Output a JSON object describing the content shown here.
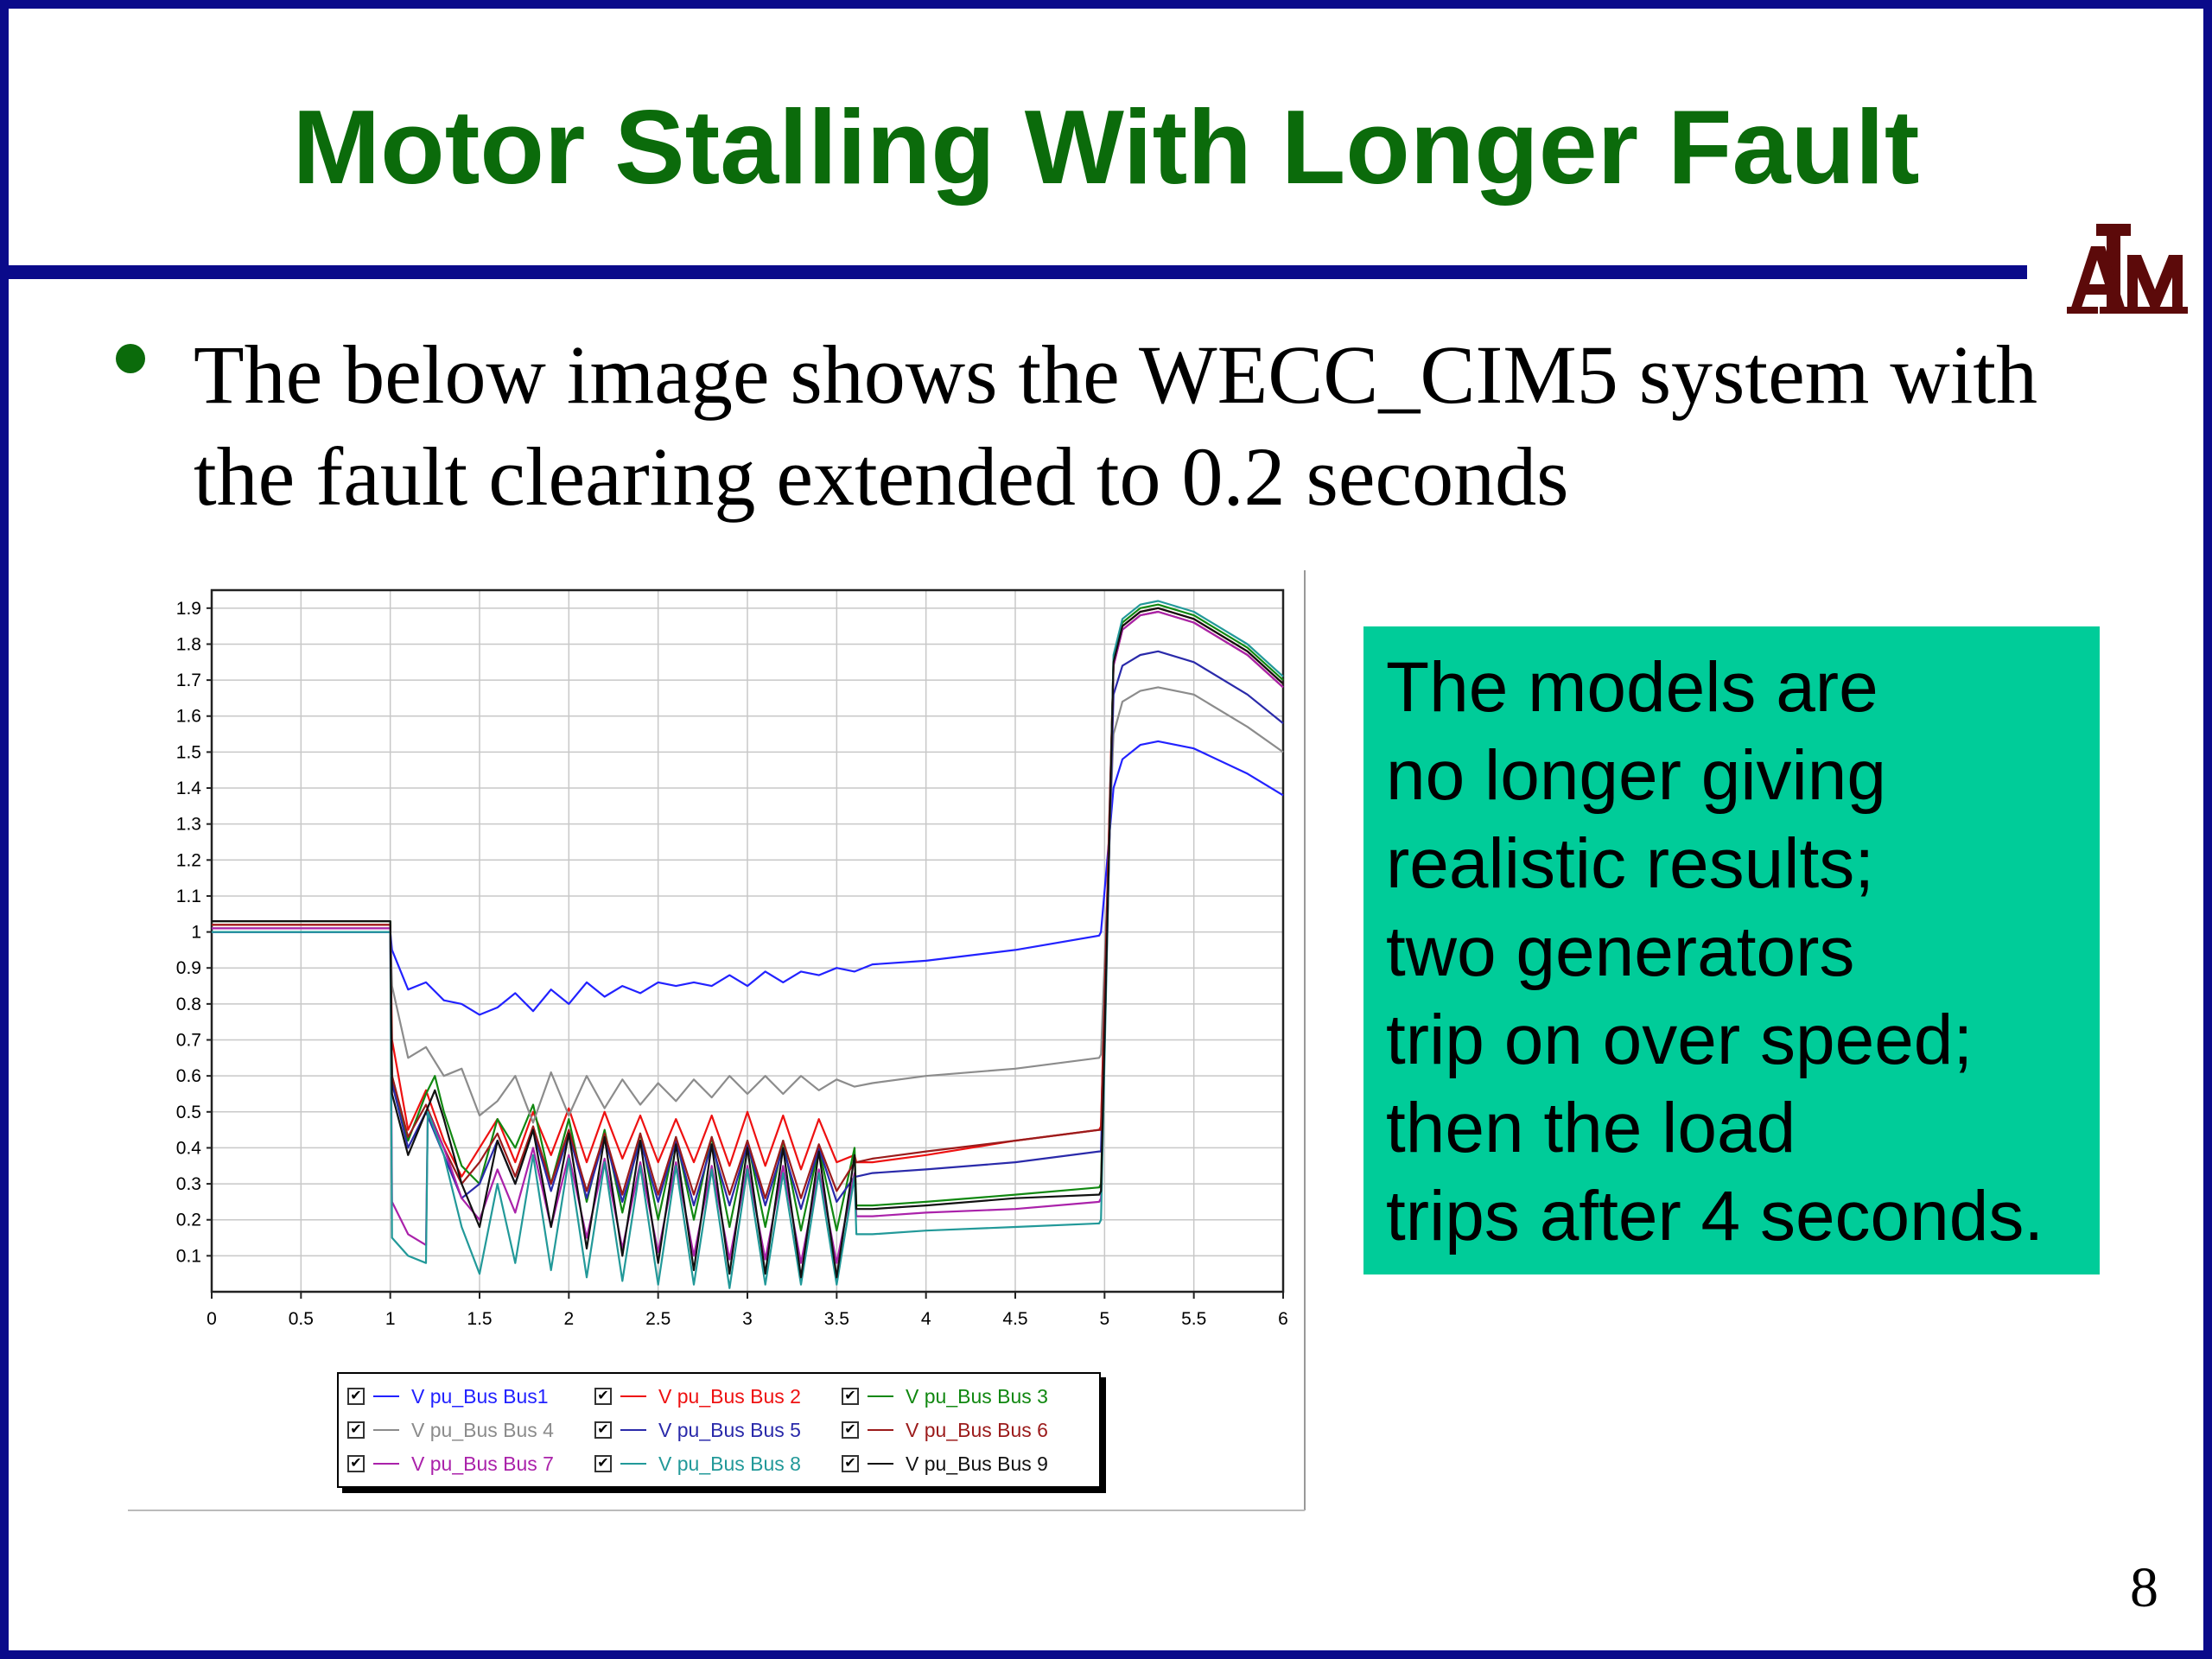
{
  "slide": {
    "title": "Motor Stalling With Longer Fault",
    "bullet": "The below image shows the WECC_CIM5 system with the fault clearing extended to 0.2 seconds",
    "callout_lines": [
      "The models are",
      "no longer giving",
      "realistic results;",
      "two generators",
      "trip on over speed;",
      "then the load",
      "trips after 4 seconds."
    ],
    "page_number": "8",
    "logo_text": "ATM",
    "colors": {
      "title": "#0b6b0b",
      "frame": "#0a0a8a",
      "callout_bg": "#00cc99",
      "logo": "#5c0a0a"
    }
  },
  "chart_data": {
    "type": "line",
    "title": "",
    "xlabel": "",
    "ylabel": "",
    "xlim": [
      0,
      6
    ],
    "ylim": [
      0,
      1.95
    ],
    "xticks": [
      "0",
      "0.5",
      "1",
      "1.5",
      "2",
      "2.5",
      "3",
      "3.5",
      "4",
      "4.5",
      "5",
      "5.5",
      "6"
    ],
    "yticks": [
      "0.1",
      "0.2",
      "0.3",
      "0.4",
      "0.5",
      "0.6",
      "0.7",
      "0.8",
      "0.9",
      "1",
      "1.1",
      "1.2",
      "1.3",
      "1.4",
      "1.5",
      "1.6",
      "1.7",
      "1.8",
      "1.9"
    ],
    "grid": true,
    "legend_position": "bottom",
    "legend_checked": true,
    "series": [
      {
        "name": "V pu_Bus Bus1",
        "color": "#2222ff",
        "x": [
          0,
          1,
          1.01,
          1.1,
          1.2,
          1.3,
          1.4,
          1.5,
          1.6,
          1.7,
          1.8,
          1.9,
          2.0,
          2.1,
          2.2,
          2.3,
          2.4,
          2.5,
          2.6,
          2.7,
          2.8,
          2.9,
          3.0,
          3.1,
          3.2,
          3.3,
          3.4,
          3.5,
          3.6,
          3.7,
          4.0,
          4.5,
          4.97,
          4.98,
          5.05,
          5.1,
          5.2,
          5.3,
          5.5,
          5.8,
          6.0
        ],
        "y": [
          1.0,
          1.0,
          0.95,
          0.84,
          0.86,
          0.81,
          0.8,
          0.77,
          0.79,
          0.83,
          0.78,
          0.84,
          0.8,
          0.86,
          0.82,
          0.85,
          0.83,
          0.86,
          0.85,
          0.86,
          0.85,
          0.88,
          0.85,
          0.89,
          0.86,
          0.89,
          0.88,
          0.9,
          0.89,
          0.91,
          0.92,
          0.95,
          0.99,
          1.0,
          1.4,
          1.48,
          1.52,
          1.53,
          1.51,
          1.44,
          1.38
        ]
      },
      {
        "name": "V pu_Bus Bus 2",
        "color": "#ee1111",
        "x": [
          0,
          1,
          1.01,
          1.1,
          1.2,
          1.3,
          1.4,
          1.5,
          1.6,
          1.7,
          1.8,
          1.9,
          2.0,
          2.1,
          2.2,
          2.3,
          2.4,
          2.5,
          2.6,
          2.7,
          2.8,
          2.9,
          3.0,
          3.1,
          3.2,
          3.3,
          3.4,
          3.5,
          3.6,
          3.61,
          3.7,
          4.0,
          4.5,
          4.97,
          4.98,
          5.05,
          5.1,
          5.2,
          5.3,
          5.5,
          5.8,
          6.0
        ],
        "y": [
          1.02,
          1.02,
          0.7,
          0.45,
          0.56,
          0.42,
          0.32,
          0.4,
          0.48,
          0.36,
          0.5,
          0.38,
          0.51,
          0.36,
          0.5,
          0.37,
          0.49,
          0.36,
          0.48,
          0.36,
          0.49,
          0.35,
          0.5,
          0.35,
          0.49,
          0.34,
          0.48,
          0.36,
          0.38,
          0.36,
          0.36,
          0.38,
          0.42,
          0.45,
          0.46,
          1.75,
          1.85,
          1.89,
          1.9,
          1.87,
          1.78,
          1.69
        ]
      },
      {
        "name": "V pu_Bus Bus 3",
        "color": "#118811",
        "x": [
          0,
          1,
          1.01,
          1.1,
          1.2,
          1.25,
          1.3,
          1.4,
          1.5,
          1.6,
          1.7,
          1.8,
          1.9,
          2.0,
          2.1,
          2.2,
          2.3,
          2.4,
          2.5,
          2.6,
          2.7,
          2.8,
          2.9,
          3.0,
          3.1,
          3.2,
          3.3,
          3.4,
          3.5,
          3.6,
          3.61,
          3.7,
          4.0,
          4.5,
          4.97,
          4.98,
          5.05,
          5.1,
          5.2,
          5.3,
          5.5,
          5.8,
          6.0
        ],
        "y": [
          1.03,
          1.03,
          0.6,
          0.42,
          0.55,
          0.6,
          0.5,
          0.35,
          0.3,
          0.48,
          0.4,
          0.52,
          0.3,
          0.48,
          0.25,
          0.45,
          0.22,
          0.44,
          0.2,
          0.43,
          0.2,
          0.43,
          0.18,
          0.42,
          0.18,
          0.42,
          0.17,
          0.4,
          0.17,
          0.4,
          0.24,
          0.24,
          0.25,
          0.27,
          0.29,
          0.3,
          1.76,
          1.86,
          1.9,
          1.91,
          1.88,
          1.79,
          1.7
        ]
      },
      {
        "name": "V pu_Bus Bus 4",
        "color": "#8c8c8c",
        "x": [
          0,
          1,
          1.01,
          1.1,
          1.2,
          1.3,
          1.4,
          1.5,
          1.6,
          1.7,
          1.8,
          1.9,
          2.0,
          2.1,
          2.2,
          2.3,
          2.4,
          2.5,
          2.6,
          2.7,
          2.8,
          2.9,
          3.0,
          3.1,
          3.2,
          3.3,
          3.4,
          3.5,
          3.6,
          3.7,
          4.0,
          4.5,
          4.97,
          4.98,
          5.05,
          5.1,
          5.2,
          5.3,
          5.5,
          5.8,
          6.0
        ],
        "y": [
          1.01,
          1.01,
          0.85,
          0.65,
          0.68,
          0.6,
          0.62,
          0.49,
          0.53,
          0.6,
          0.47,
          0.61,
          0.49,
          0.6,
          0.51,
          0.59,
          0.52,
          0.58,
          0.53,
          0.59,
          0.54,
          0.6,
          0.55,
          0.6,
          0.55,
          0.6,
          0.56,
          0.59,
          0.57,
          0.58,
          0.6,
          0.62,
          0.65,
          0.66,
          1.55,
          1.64,
          1.67,
          1.68,
          1.66,
          1.57,
          1.5
        ]
      },
      {
        "name": "V pu_Bus Bus 5",
        "color": "#2a2aaa",
        "x": [
          0,
          1,
          1.01,
          1.1,
          1.2,
          1.3,
          1.4,
          1.5,
          1.6,
          1.7,
          1.8,
          1.9,
          2.0,
          2.1,
          2.2,
          2.3,
          2.4,
          2.5,
          2.6,
          2.7,
          2.8,
          2.9,
          3.0,
          3.1,
          3.2,
          3.3,
          3.4,
          3.5,
          3.6,
          3.61,
          3.7,
          4.0,
          4.5,
          4.97,
          4.98,
          5.05,
          5.1,
          5.2,
          5.3,
          5.5,
          5.8,
          6.0
        ],
        "y": [
          1.0,
          1.0,
          0.58,
          0.4,
          0.5,
          0.38,
          0.26,
          0.3,
          0.42,
          0.3,
          0.45,
          0.28,
          0.44,
          0.26,
          0.43,
          0.25,
          0.42,
          0.25,
          0.42,
          0.24,
          0.41,
          0.24,
          0.41,
          0.24,
          0.4,
          0.23,
          0.4,
          0.25,
          0.32,
          0.32,
          0.33,
          0.34,
          0.36,
          0.39,
          0.39,
          1.66,
          1.74,
          1.77,
          1.78,
          1.75,
          1.66,
          1.58
        ]
      },
      {
        "name": "V pu_Bus Bus 6",
        "color": "#9b1b1b",
        "x": [
          0,
          1,
          1.01,
          1.1,
          1.2,
          1.3,
          1.4,
          1.5,
          1.6,
          1.7,
          1.8,
          1.9,
          2.0,
          2.1,
          2.2,
          2.3,
          2.4,
          2.5,
          2.6,
          2.7,
          2.8,
          2.9,
          3.0,
          3.1,
          3.2,
          3.3,
          3.4,
          3.5,
          3.6,
          3.61,
          3.7,
          4.0,
          4.5,
          4.97,
          4.98,
          5.05,
          5.1,
          5.2,
          5.3,
          5.5,
          5.8,
          6.0
        ],
        "y": [
          1.02,
          1.02,
          0.6,
          0.43,
          0.52,
          0.4,
          0.3,
          0.36,
          0.44,
          0.32,
          0.46,
          0.3,
          0.45,
          0.28,
          0.44,
          0.27,
          0.44,
          0.27,
          0.43,
          0.27,
          0.43,
          0.27,
          0.42,
          0.26,
          0.42,
          0.26,
          0.41,
          0.28,
          0.36,
          0.36,
          0.37,
          0.39,
          0.42,
          0.45,
          0.45,
          1.74,
          1.84,
          1.88,
          1.89,
          1.86,
          1.77,
          1.68
        ]
      },
      {
        "name": "V pu_Bus Bus 7",
        "color": "#aa22aa",
        "x": [
          0,
          1,
          1.01,
          1.1,
          1.2,
          1.21,
          1.3,
          1.4,
          1.5,
          1.6,
          1.7,
          1.8,
          1.9,
          2.0,
          2.1,
          2.2,
          2.3,
          2.4,
          2.5,
          2.6,
          2.7,
          2.8,
          2.9,
          3.0,
          3.1,
          3.2,
          3.3,
          3.4,
          3.5,
          3.6,
          3.61,
          3.7,
          4.0,
          4.5,
          4.97,
          4.98,
          5.05,
          5.1,
          5.2,
          5.3,
          5.5,
          5.8,
          6.0
        ],
        "y": [
          1.01,
          1.01,
          0.25,
          0.16,
          0.13,
          0.5,
          0.4,
          0.26,
          0.2,
          0.34,
          0.22,
          0.4,
          0.18,
          0.38,
          0.15,
          0.37,
          0.12,
          0.36,
          0.11,
          0.36,
          0.1,
          0.35,
          0.09,
          0.35,
          0.09,
          0.35,
          0.08,
          0.34,
          0.08,
          0.33,
          0.21,
          0.21,
          0.22,
          0.23,
          0.25,
          0.26,
          1.74,
          1.84,
          1.88,
          1.89,
          1.86,
          1.77,
          1.68
        ]
      },
      {
        "name": "V pu_Bus Bus 8",
        "color": "#229999",
        "x": [
          0,
          1,
          1.01,
          1.1,
          1.2,
          1.21,
          1.3,
          1.4,
          1.5,
          1.6,
          1.7,
          1.8,
          1.9,
          2.0,
          2.1,
          2.2,
          2.3,
          2.4,
          2.5,
          2.6,
          2.7,
          2.8,
          2.9,
          3.0,
          3.1,
          3.2,
          3.3,
          3.4,
          3.5,
          3.6,
          3.61,
          3.7,
          4.0,
          4.5,
          4.97,
          4.98,
          5.05,
          5.1,
          5.2,
          5.3,
          5.5,
          5.8,
          6.0
        ],
        "y": [
          1.0,
          1.0,
          0.15,
          0.1,
          0.08,
          0.5,
          0.38,
          0.18,
          0.05,
          0.3,
          0.08,
          0.38,
          0.06,
          0.37,
          0.04,
          0.36,
          0.03,
          0.35,
          0.02,
          0.35,
          0.02,
          0.34,
          0.01,
          0.34,
          0.02,
          0.33,
          0.02,
          0.33,
          0.02,
          0.32,
          0.16,
          0.16,
          0.17,
          0.18,
          0.19,
          0.2,
          1.77,
          1.87,
          1.91,
          1.92,
          1.89,
          1.8,
          1.71
        ]
      },
      {
        "name": "V pu_Bus Bus 9",
        "color": "#111111",
        "x": [
          0,
          1,
          1.01,
          1.1,
          1.2,
          1.25,
          1.3,
          1.4,
          1.5,
          1.6,
          1.7,
          1.8,
          1.9,
          2.0,
          2.1,
          2.2,
          2.3,
          2.4,
          2.5,
          2.6,
          2.7,
          2.8,
          2.9,
          3.0,
          3.1,
          3.2,
          3.3,
          3.4,
          3.5,
          3.6,
          3.61,
          3.7,
          4.0,
          4.5,
          4.97,
          4.98,
          5.05,
          5.1,
          5.2,
          5.3,
          5.5,
          5.8,
          6.0
        ],
        "y": [
          1.03,
          1.03,
          0.55,
          0.38,
          0.5,
          0.56,
          0.48,
          0.3,
          0.18,
          0.42,
          0.3,
          0.45,
          0.18,
          0.44,
          0.12,
          0.43,
          0.1,
          0.42,
          0.08,
          0.41,
          0.06,
          0.41,
          0.05,
          0.4,
          0.05,
          0.4,
          0.04,
          0.39,
          0.04,
          0.38,
          0.23,
          0.23,
          0.24,
          0.26,
          0.27,
          0.28,
          1.75,
          1.85,
          1.89,
          1.9,
          1.87,
          1.78,
          1.69
        ]
      }
    ]
  }
}
